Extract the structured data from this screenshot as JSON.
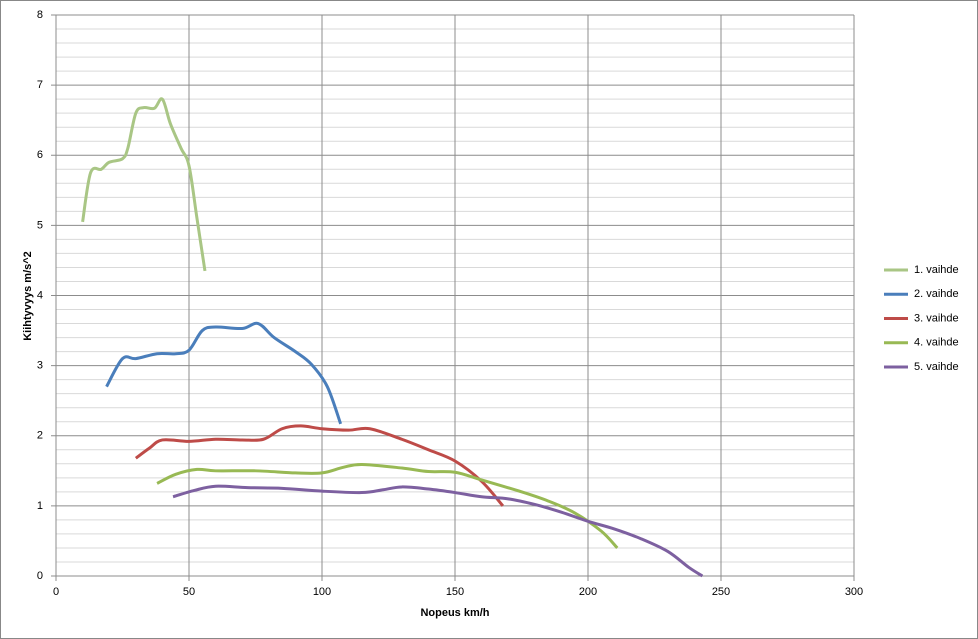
{
  "chart_data": {
    "type": "line",
    "x_label": "Nopeus km/h",
    "y_label": "Kiihtyvyys  m/s^2",
    "xlim": [
      0,
      300
    ],
    "xticks": [
      0,
      50,
      100,
      150,
      200,
      250,
      300
    ],
    "ylim": [
      0,
      8
    ],
    "yticks": [
      0,
      1,
      2,
      3,
      4,
      5,
      6,
      7,
      8
    ],
    "y_minor_ticks": [
      0.2,
      0.4,
      0.6,
      0.8,
      1.2,
      1.4,
      1.6,
      1.8,
      2.2,
      2.4,
      2.6,
      2.8,
      3.2,
      3.4,
      3.6,
      3.8,
      4.2,
      4.4,
      4.6,
      4.8,
      5.2,
      5.4,
      5.6,
      5.8,
      6.2,
      6.4,
      6.6,
      6.8,
      7.2,
      7.4,
      7.6,
      7.8
    ],
    "grid": true,
    "legend": "right",
    "series": [
      {
        "name": "1. vaihde",
        "color": "#a9c685",
        "x": [
          10,
          13,
          17,
          20,
          25,
          27,
          30,
          33,
          37,
          40,
          43,
          47,
          50,
          53,
          56
        ],
        "values": [
          5.05,
          5.75,
          5.8,
          5.9,
          5.95,
          6.1,
          6.6,
          6.68,
          6.67,
          6.8,
          6.45,
          6.1,
          5.85,
          5.1,
          4.35
        ]
      },
      {
        "name": "2. vaihde",
        "color": "#4a7ebb",
        "x": [
          19,
          25,
          30,
          38,
          45,
          50,
          55,
          60,
          70,
          76,
          82,
          90,
          96,
          102,
          107
        ],
        "values": [
          2.7,
          3.1,
          3.1,
          3.17,
          3.17,
          3.22,
          3.5,
          3.55,
          3.53,
          3.6,
          3.4,
          3.2,
          3.02,
          2.7,
          2.17
        ]
      },
      {
        "name": "3. vaihde",
        "color": "#be4b48",
        "x": [
          30,
          35,
          40,
          50,
          60,
          70,
          78,
          85,
          92,
          100,
          110,
          118,
          130,
          140,
          150,
          160,
          168
        ],
        "values": [
          1.68,
          1.82,
          1.94,
          1.92,
          1.95,
          1.94,
          1.95,
          2.1,
          2.14,
          2.1,
          2.08,
          2.1,
          1.95,
          1.8,
          1.64,
          1.35,
          1.0
        ]
      },
      {
        "name": "4. vaihde",
        "color": "#98b954",
        "x": [
          38,
          45,
          53,
          60,
          75,
          90,
          100,
          108,
          115,
          130,
          140,
          150,
          160,
          175,
          185,
          195,
          205,
          211
        ],
        "values": [
          1.32,
          1.45,
          1.52,
          1.5,
          1.5,
          1.47,
          1.47,
          1.55,
          1.59,
          1.54,
          1.49,
          1.48,
          1.37,
          1.2,
          1.07,
          0.9,
          0.64,
          0.4
        ]
      },
      {
        "name": "5. vaihde",
        "color": "#7d60a0",
        "x": [
          44,
          52,
          60,
          72,
          85,
          100,
          115,
          123,
          130,
          140,
          150,
          160,
          170,
          180,
          190,
          200,
          210,
          220,
          230,
          238,
          243
        ],
        "values": [
          1.13,
          1.22,
          1.28,
          1.26,
          1.25,
          1.21,
          1.19,
          1.23,
          1.27,
          1.24,
          1.19,
          1.13,
          1.1,
          1.02,
          0.91,
          0.78,
          0.67,
          0.53,
          0.35,
          0.12,
          0
        ]
      }
    ]
  }
}
